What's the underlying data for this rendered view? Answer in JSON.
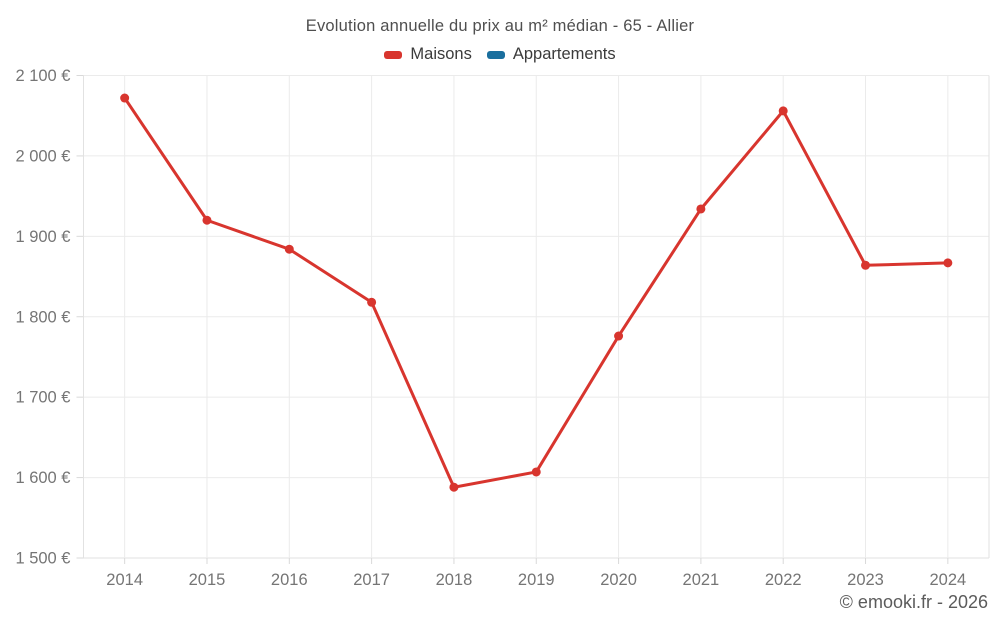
{
  "title": "Evolution annuelle du prix au m² médian - 65 - Allier",
  "footer": "© emooki.fr - 2026",
  "chart_data": {
    "type": "line",
    "title": "Evolution annuelle du prix au m² médian - 65 - Allier",
    "categories": [
      "2014",
      "2015",
      "2016",
      "2017",
      "2018",
      "2019",
      "2020",
      "2021",
      "2022",
      "2023",
      "2024"
    ],
    "series": [
      {
        "name": "Maisons",
        "color": "#d8352e",
        "values": [
          2072,
          1920,
          1884,
          1818,
          1588,
          1607,
          1776,
          1934,
          2056,
          1864,
          1867
        ]
      },
      {
        "name": "Appartements",
        "color": "#1a6f9e",
        "values": []
      }
    ],
    "xlabel": "",
    "ylabel": "",
    "ylim": [
      1500,
      2100
    ],
    "ytick_step": 100,
    "ytick_labels": [
      "1 500 €",
      "1 600 €",
      "1 700 €",
      "1 800 €",
      "1 900 €",
      "2 000 €",
      "2 100 €"
    ],
    "grid": true,
    "legend_position": "top",
    "marker": "circle",
    "attribution": "© emooki.fr - 2026"
  }
}
